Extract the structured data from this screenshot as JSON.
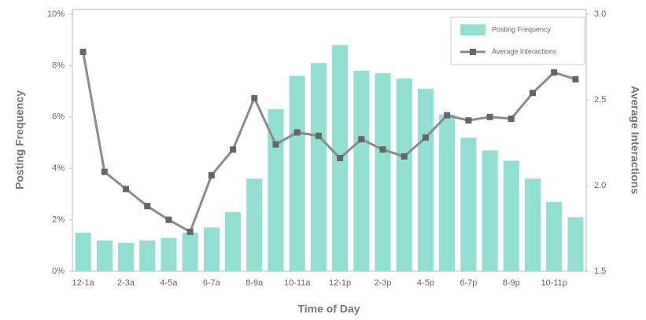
{
  "chart_data": {
    "type": "bar-line",
    "x_label": "Time of Day",
    "y_label": "Posting Frequency",
    "y2_label": "Average Interactions",
    "categories": [
      "12-1a",
      null,
      "2-3a",
      null,
      "4-5a",
      null,
      "6-7a",
      null,
      "8-9a",
      null,
      "10-11a",
      null,
      "12-1p",
      null,
      "2-3p",
      null,
      "4-5p",
      null,
      "6-7p",
      null,
      "8-9p",
      null,
      "10-11p",
      null
    ],
    "series": [
      {
        "name": "Posting Frequency",
        "type": "bar",
        "color": "#93dfd2",
        "values": [
          1.5,
          1.2,
          1.1,
          1.2,
          1.3,
          1.5,
          1.7,
          2.3,
          3.6,
          6.3,
          7.6,
          8.1,
          8.8,
          7.8,
          7.7,
          7.5,
          7.1,
          6.1,
          5.2,
          4.7,
          4.3,
          3.6,
          2.7,
          2.1
        ]
      },
      {
        "name": "Average Interactions",
        "type": "line",
        "axis": "y2",
        "color": "#8c8c8c",
        "values": [
          2.78,
          2.08,
          1.98,
          1.88,
          1.8,
          1.73,
          2.06,
          2.21,
          2.51,
          2.24,
          2.31,
          2.29,
          2.16,
          2.27,
          2.21,
          2.17,
          2.28,
          2.41,
          2.38,
          2.4,
          2.39,
          2.54,
          2.66,
          2.62
        ]
      }
    ],
    "ylim": [
      0,
      10
    ],
    "yticks": [
      {
        "value": 0,
        "label": "0%"
      },
      {
        "value": 2,
        "label": "2%"
      },
      {
        "value": 4,
        "label": "4%"
      },
      {
        "value": 6,
        "label": "6%"
      },
      {
        "value": 8,
        "label": "8%"
      },
      {
        "value": 10,
        "label": "10%"
      }
    ],
    "y2lim": [
      1.5,
      3
    ],
    "y2ticks": [
      1.5,
      {
        "value": 2,
        "label": "2.0"
      },
      2.5,
      {
        "value": 3,
        "label": "3.0"
      }
    ],
    "legend": "upper right"
  }
}
